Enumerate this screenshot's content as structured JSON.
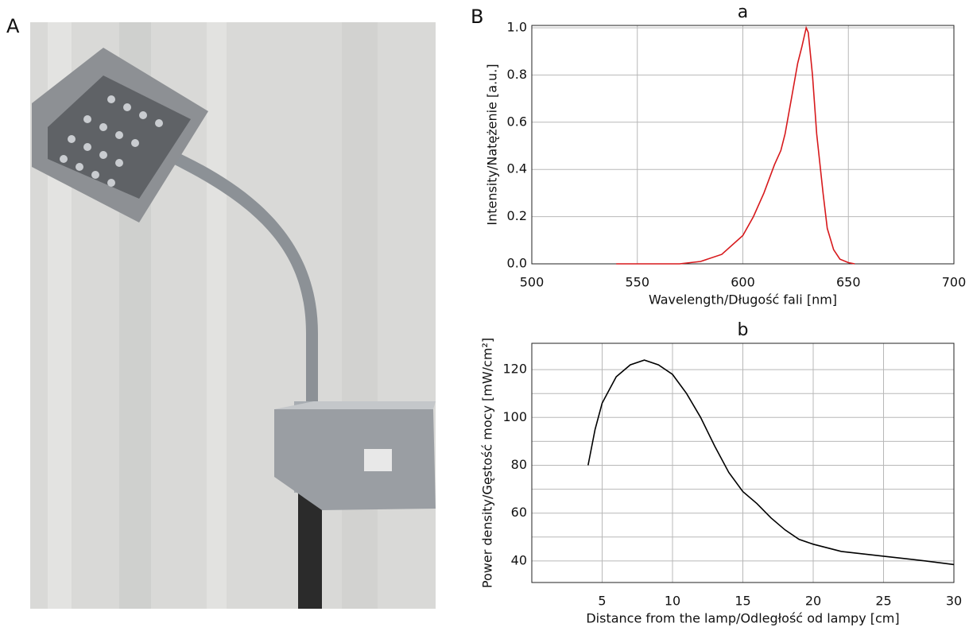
{
  "panel_labels": [
    "A",
    "B"
  ],
  "chart_data": [
    {
      "type": "line",
      "title": "a",
      "x_label": "Wavelength/Długość fali [nm]",
      "y_label": "Intensity/Natężenie [a.u.]",
      "x": [
        540,
        570,
        580,
        590,
        600,
        605,
        610,
        615,
        618,
        620,
        623,
        626,
        628,
        630,
        631,
        633,
        635,
        638,
        640,
        643,
        646,
        650,
        653
      ],
      "values": [
        0,
        0,
        0.01,
        0.04,
        0.12,
        0.2,
        0.3,
        0.42,
        0.48,
        0.55,
        0.7,
        0.85,
        0.92,
        1.0,
        0.98,
        0.8,
        0.55,
        0.3,
        0.15,
        0.06,
        0.02,
        0.005,
        0
      ],
      "color": "#d7191c",
      "xlim": [
        500,
        700
      ],
      "xticks": [
        500,
        550,
        600,
        650,
        700
      ],
      "ylim": [
        0,
        1.01
      ],
      "yticks": [
        {
          "value": 0,
          "label": "0.0"
        },
        0.2,
        0.4,
        0.6,
        0.8,
        {
          "value": 1,
          "label": "1.0"
        }
      ],
      "grid": true
    },
    {
      "type": "line",
      "title": "b",
      "x_label": "Distance from the lamp/Odległość od lampy [cm]",
      "y_label": "Power density/Gęstość mocy [mW/cm²]",
      "x": [
        4,
        4.5,
        5,
        6,
        7,
        8,
        9,
        10,
        11,
        12,
        13,
        14,
        15,
        16,
        17,
        18,
        19,
        20,
        22,
        25,
        28,
        30
      ],
      "values": [
        80,
        95,
        106,
        117,
        122,
        124,
        122,
        118,
        110,
        100,
        88,
        77,
        69,
        64,
        58,
        53,
        49,
        47,
        44,
        42,
        40,
        38.5
      ],
      "color": "#000000",
      "xlim": [
        0,
        30
      ],
      "xticks": [
        5,
        10,
        15,
        20,
        25,
        30
      ],
      "ylim": [
        31,
        131
      ],
      "yticks": [
        40,
        60,
        80,
        100,
        120
      ],
      "yminor": [
        50,
        70,
        90,
        110
      ],
      "grid": true
    }
  ]
}
